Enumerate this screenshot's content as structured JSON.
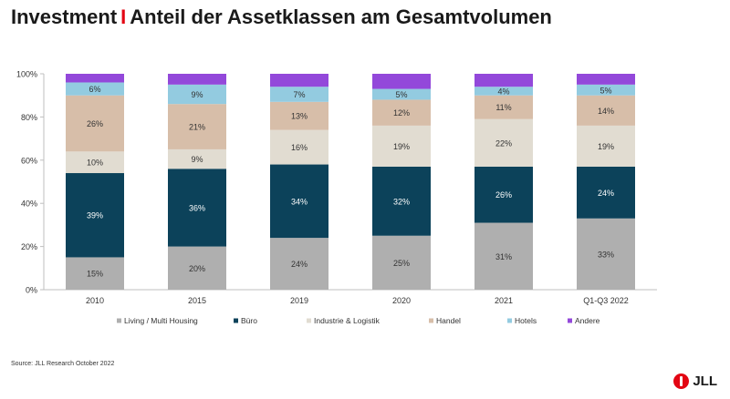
{
  "header": {
    "title_main": "Investment",
    "title_separator": "I",
    "title_sub": "Anteil der Assetklassen am Gesamtvolumen"
  },
  "chart_data": {
    "type": "bar",
    "stacked": true,
    "title": "Anteil der Assetklassen am Gesamtvolumen",
    "categories": [
      "2010",
      "2015",
      "2019",
      "2020",
      "2021",
      "Q1-Q3 2022"
    ],
    "ylim": [
      0,
      100
    ],
    "yticks": [
      0,
      20,
      40,
      60,
      80,
      100
    ],
    "ytick_suffix": "%",
    "legend_position": "bottom",
    "series": [
      {
        "name": "Living / Multi Housing",
        "color": "#afafaf",
        "values": [
          15,
          20,
          24,
          25,
          31,
          33
        ],
        "label_color": "#333333"
      },
      {
        "name": "Büro",
        "color": "#0c425a",
        "values": [
          39,
          36,
          34,
          32,
          26,
          24
        ],
        "label_color": "#ffffff"
      },
      {
        "name": "Industrie & Logistik",
        "color": "#e1dcd1",
        "values": [
          10,
          9,
          16,
          19,
          22,
          19
        ],
        "label_color": "#333333"
      },
      {
        "name": "Handel",
        "color": "#d7bea9",
        "values": [
          26,
          21,
          13,
          12,
          11,
          14
        ],
        "label_color": "#333333"
      },
      {
        "name": "Hotels",
        "color": "#93cbe0",
        "values": [
          6,
          9,
          7,
          5,
          4,
          5
        ],
        "label_color": "#333333"
      },
      {
        "name": "Andere",
        "color": "#9348da",
        "values": [
          4,
          5,
          6,
          7,
          6,
          5
        ],
        "label_color": null
      }
    ]
  },
  "footer": {
    "source": "Source: JLL Research October 2022",
    "logo_text": "JLL"
  }
}
